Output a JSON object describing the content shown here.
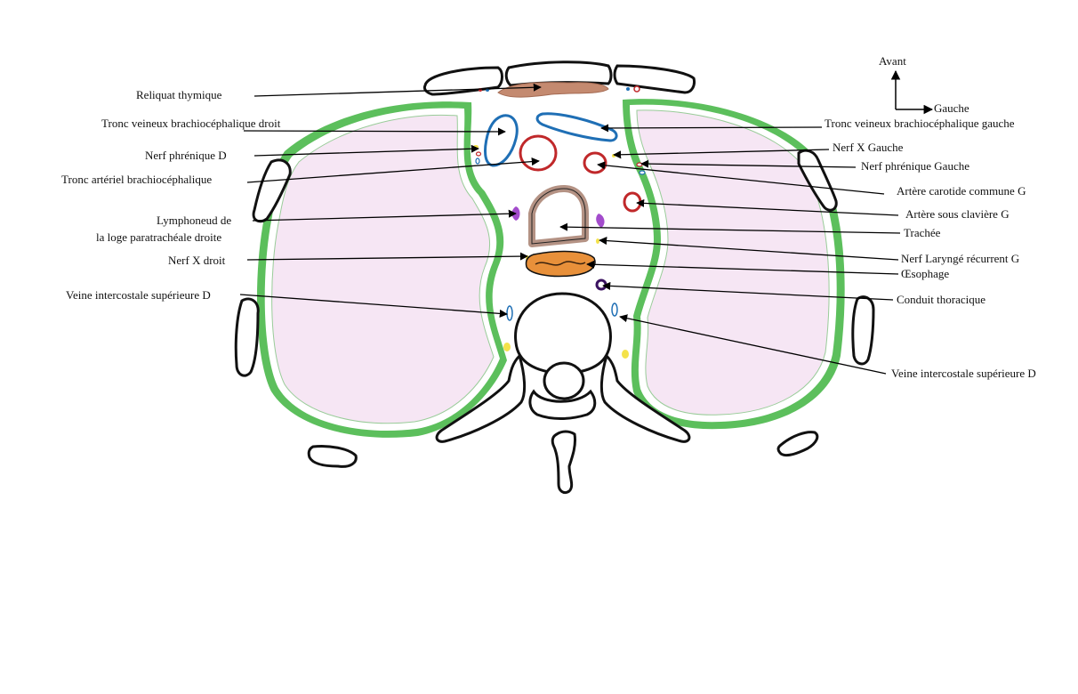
{
  "orientation": {
    "up": "Avant",
    "right": "Gauche"
  },
  "labels": {
    "reliquat_thymique": "Reliquat thymique",
    "tvbc_droit": "Tronc veineux brachiocéphalique droit",
    "nerf_phrenique_d": "Nerf phrénique D",
    "tronc_arteriel": "Tronc artériel brachiocéphalique",
    "lymphonoeud_1": "Lymphoneud de",
    "lymphonoeud_2": "la loge paratrachéale droite",
    "nerf_x_droit": "Nerf X droit",
    "veine_intercostale_d_left": "Veine intercostale supérieure D",
    "tvbc_gauche": "Tronc veineux brachiocéphalique gauche",
    "nerf_x_gauche": "Nerf X Gauche",
    "nerf_phrenique_gauche": "Nerf phrénique Gauche",
    "artere_carotide": "Artère carotide commune G",
    "artere_sous_claviere": "Artère sous clavière G",
    "trachee": "Trachée",
    "nerf_laryngé": "Nerf Laryngé récurrent G",
    "oesophage": "Œsophage",
    "conduit_thoracique": "Conduit thoracique",
    "veine_intercostale_d_right": "Veine intercostale supérieure D"
  },
  "colors": {
    "pleura": "#5cbf5c",
    "lung_fill": "#f6e6f4",
    "vein": "#1f6fb5",
    "artery": "#c0282a",
    "thymus": "#c48a70",
    "trachea": "#b49284",
    "esophagus": "#e8903a",
    "lymph": "#a34ccc",
    "nerve": "#f4e24a",
    "thoracic_duct": "#3a1260"
  }
}
